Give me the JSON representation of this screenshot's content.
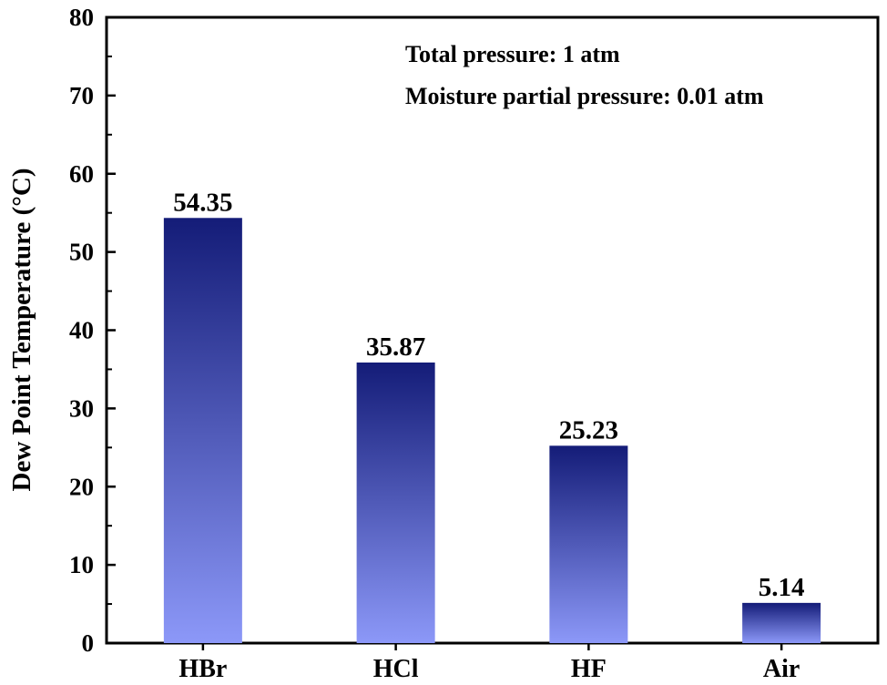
{
  "chart_data": {
    "type": "bar",
    "categories": [
      "HBr",
      "HCl",
      "HF",
      "Air"
    ],
    "values": [
      54.35,
      35.87,
      25.23,
      5.14
    ],
    "data_labels": [
      "54.35",
      "35.87",
      "25.23",
      "5.14"
    ],
    "ylabel": "Dew Point Temperature (°C)",
    "xlabel": "",
    "ylim": [
      0,
      80
    ],
    "yticks": [
      0,
      10,
      20,
      30,
      40,
      50,
      60,
      70,
      80
    ],
    "annotations": [
      "Total pressure: 1 atm",
      "Moisture partial pressure: 0.01 atm"
    ],
    "grid": false,
    "bar_gradient": {
      "top": "#141c78",
      "bottom": "#8c98f8"
    }
  }
}
